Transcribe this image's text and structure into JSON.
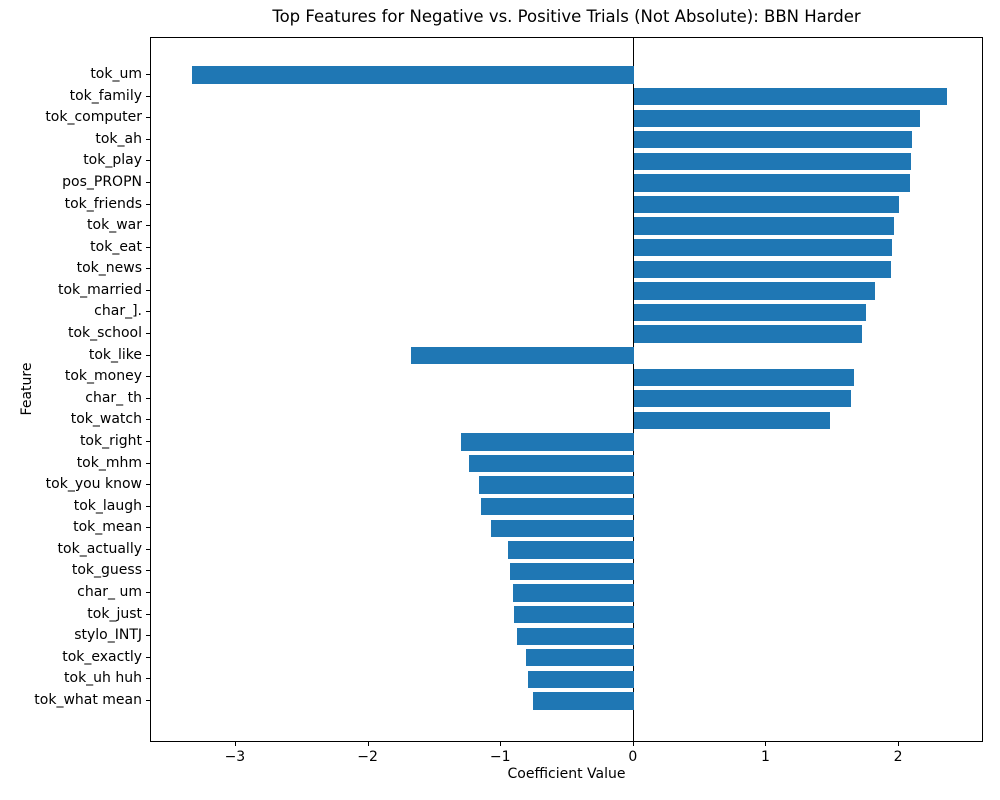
{
  "chart_data": {
    "type": "bar",
    "orientation": "horizontal",
    "title": "Top Features for Negative vs. Positive Trials (Not Absolute): BBN Harder",
    "xlabel": "Coefficient Value",
    "ylabel": "Feature",
    "categories": [
      "tok_um",
      "tok_family",
      "tok_computer",
      "tok_ah",
      "tok_play",
      "pos_PROPN",
      "tok_friends",
      "tok_war",
      "tok_eat",
      "tok_news",
      "tok_married",
      "char_].",
      "tok_school",
      "tok_like",
      "tok_money",
      "char_ th",
      "tok_watch",
      "tok_right",
      "tok_mhm",
      "tok_you know",
      "tok_laugh",
      "tok_mean",
      "tok_actually",
      "tok_guess",
      "char_ um",
      "tok_just",
      "stylo_INTJ",
      "tok_exactly",
      "tok_uh huh",
      "tok_what mean"
    ],
    "values": [
      -3.33,
      2.36,
      2.16,
      2.1,
      2.09,
      2.08,
      2.0,
      1.96,
      1.95,
      1.94,
      1.82,
      1.75,
      1.72,
      -1.68,
      1.66,
      1.64,
      1.48,
      -1.3,
      -1.24,
      -1.17,
      -1.15,
      -1.08,
      -0.95,
      -0.93,
      -0.91,
      -0.9,
      -0.88,
      -0.81,
      -0.8,
      -0.76
    ],
    "xlim": [
      -3.64,
      2.64
    ],
    "xticks": [
      -3,
      -2,
      -1,
      0,
      1,
      2
    ],
    "bar_color": "#1f77b4",
    "zero_line": true,
    "grid": false
  }
}
